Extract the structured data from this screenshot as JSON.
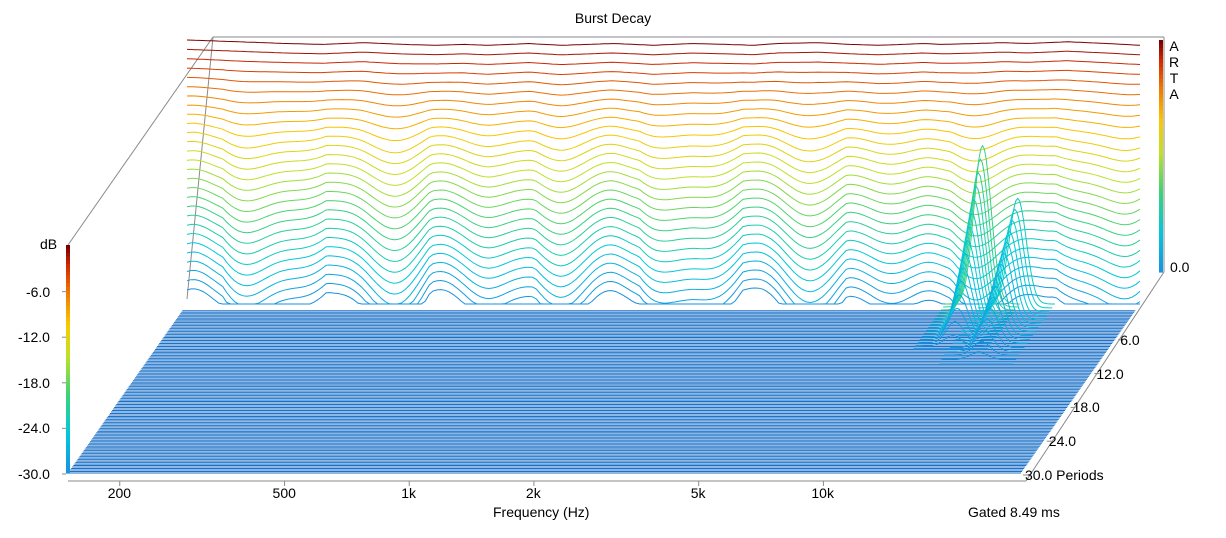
{
  "brand": [
    "A",
    "R",
    "T",
    "A"
  ],
  "colors": {
    "background": "#ffffff",
    "frame": "#8a8a8a",
    "floor_line": "#1d72c8",
    "text": "#000000",
    "scale_top": "#7a0000",
    "scale_bottom": "#1a8fe0"
  },
  "chart_data": {
    "type": "waterfall",
    "title": "Burst Decay",
    "xlabel": "Frequency (Hz)",
    "x_scale": "log",
    "xlim": [
      150,
      30000
    ],
    "x_ticks": [
      {
        "value": 200,
        "label": "200"
      },
      {
        "value": 500,
        "label": "500"
      },
      {
        "value": 1000,
        "label": "1k"
      },
      {
        "value": 2000,
        "label": "2k"
      },
      {
        "value": 5000,
        "label": "5k"
      },
      {
        "value": 10000,
        "label": "10k"
      }
    ],
    "ylabel": "dB",
    "ylim": [
      -30,
      0
    ],
    "y_ticks": [
      {
        "value": -6,
        "label": "-6.0"
      },
      {
        "value": -12,
        "label": "-12.0"
      },
      {
        "value": -18,
        "label": "-18.0"
      },
      {
        "value": -24,
        "label": "-24.0"
      },
      {
        "value": -30,
        "label": "-30.0"
      }
    ],
    "right_level_label": {
      "value": 0,
      "label": "0.0"
    },
    "z_label": "Periods",
    "zlim": [
      0,
      30
    ],
    "z_ticks": [
      {
        "value": 6,
        "label": "6.0"
      },
      {
        "value": 12,
        "label": "12.0"
      },
      {
        "value": 18,
        "label": "18.0"
      },
      {
        "value": 24,
        "label": "24.0"
      },
      {
        "value": 30,
        "label": "30.0 Periods"
      }
    ],
    "gate_note": "Gated 8.49 ms",
    "initial_response": {
      "freq": [
        150,
        200,
        260,
        320,
        400,
        500,
        600,
        700,
        800,
        900,
        1000,
        1200,
        1400,
        1600,
        1800,
        2000,
        2500,
        3000,
        3500,
        4000,
        5000,
        6000,
        7000,
        8000,
        9000,
        10000,
        12000,
        14000,
        16000,
        18000,
        20000,
        25000,
        30000
      ],
      "db": [
        0.0,
        -0.2,
        -0.4,
        -0.5,
        -0.3,
        -0.5,
        -0.6,
        -0.5,
        -0.6,
        -0.5,
        -0.4,
        -0.6,
        -0.5,
        -0.4,
        -0.5,
        -0.6,
        -0.4,
        -0.5,
        -0.6,
        -0.4,
        -0.3,
        -0.5,
        -0.6,
        -0.5,
        -0.4,
        -0.5,
        -0.4,
        -0.3,
        -0.4,
        -0.3,
        -0.2,
        -0.4,
        -0.6
      ]
    },
    "visible_slice_count": 28,
    "floor_slice_count": 110,
    "resonance_peaks": [
      {
        "freq": 12500,
        "db": -12.0,
        "last_period": 8.0
      },
      {
        "freq": 15200,
        "db": -18.0,
        "last_period": 10.5
      }
    ]
  }
}
